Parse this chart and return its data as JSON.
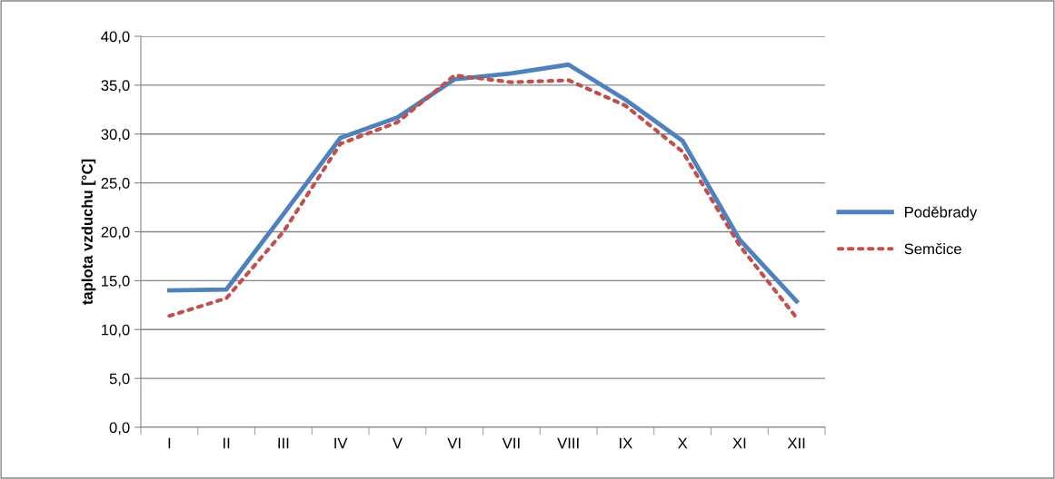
{
  "chart_data": {
    "type": "line",
    "ylabel": "taplota vzduchu [°C]",
    "categories": [
      "I",
      "II",
      "III",
      "IV",
      "V",
      "VI",
      "VII",
      "VIII",
      "IX",
      "X",
      "XI",
      "XII"
    ],
    "series": [
      {
        "name": "Poděbrady",
        "color": "#4f81bd",
        "line_style": "solid",
        "values": [
          14.0,
          14.1,
          21.8,
          29.6,
          31.7,
          35.6,
          36.2,
          37.1,
          33.5,
          29.3,
          19.2,
          12.9
        ]
      },
      {
        "name": "Semčice",
        "color": "#c0504d",
        "line_style": "dotted",
        "values": [
          11.4,
          13.2,
          20.0,
          29.0,
          31.2,
          36.0,
          35.3,
          35.5,
          32.9,
          28.2,
          18.6,
          11.2
        ]
      }
    ],
    "ylim": [
      0,
      40
    ],
    "yticks": [
      {
        "value": 0,
        "label": "0,0"
      },
      {
        "value": 5,
        "label": "5,0"
      },
      {
        "value": 10,
        "label": "10,0"
      },
      {
        "value": 15,
        "label": "15,0"
      },
      {
        "value": 20,
        "label": "20,0"
      },
      {
        "value": 25,
        "label": "25,0"
      },
      {
        "value": 30,
        "label": "30,0"
      },
      {
        "value": 35,
        "label": "35,0"
      },
      {
        "value": 40,
        "label": "40,0"
      }
    ],
    "grid": "y",
    "legend": "right",
    "marker": "none"
  }
}
